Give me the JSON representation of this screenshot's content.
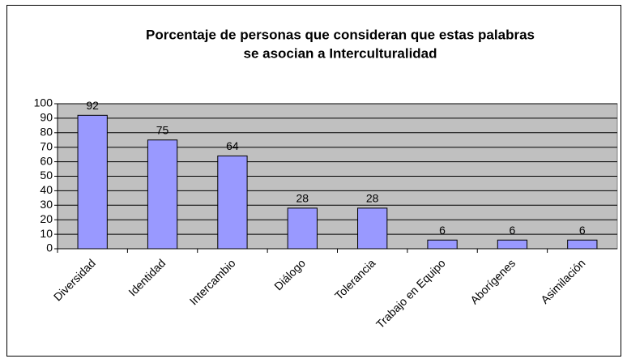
{
  "chart_data": {
    "type": "bar",
    "title": [
      "Porcentaje de personas que consideran que estas palabras",
      "se asocian a Interculturalidad"
    ],
    "categories": [
      "Diversidad",
      "Identidad",
      "Intercambio",
      "Diálogo",
      "Tolerancia",
      "Trabajo en Equipo",
      "Aborígenes",
      "Asimilación"
    ],
    "values": [
      92,
      75,
      64,
      28,
      28,
      6,
      6,
      6
    ],
    "color": "#9999ff",
    "ylim": [
      0,
      100
    ],
    "yticks": [
      0,
      10,
      20,
      30,
      40,
      50,
      60,
      70,
      80,
      90,
      100
    ],
    "grid": true
  }
}
